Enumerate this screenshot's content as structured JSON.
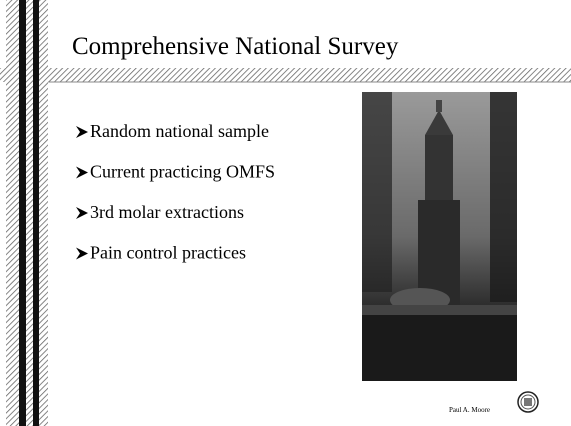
{
  "slide": {
    "title": "Comprehensive National Survey",
    "bullets": [
      "Random national sample",
      "Current practicing OMFS",
      "3rd molar extractions",
      "Pain control practices"
    ],
    "footer": "Paul A. Moore"
  }
}
